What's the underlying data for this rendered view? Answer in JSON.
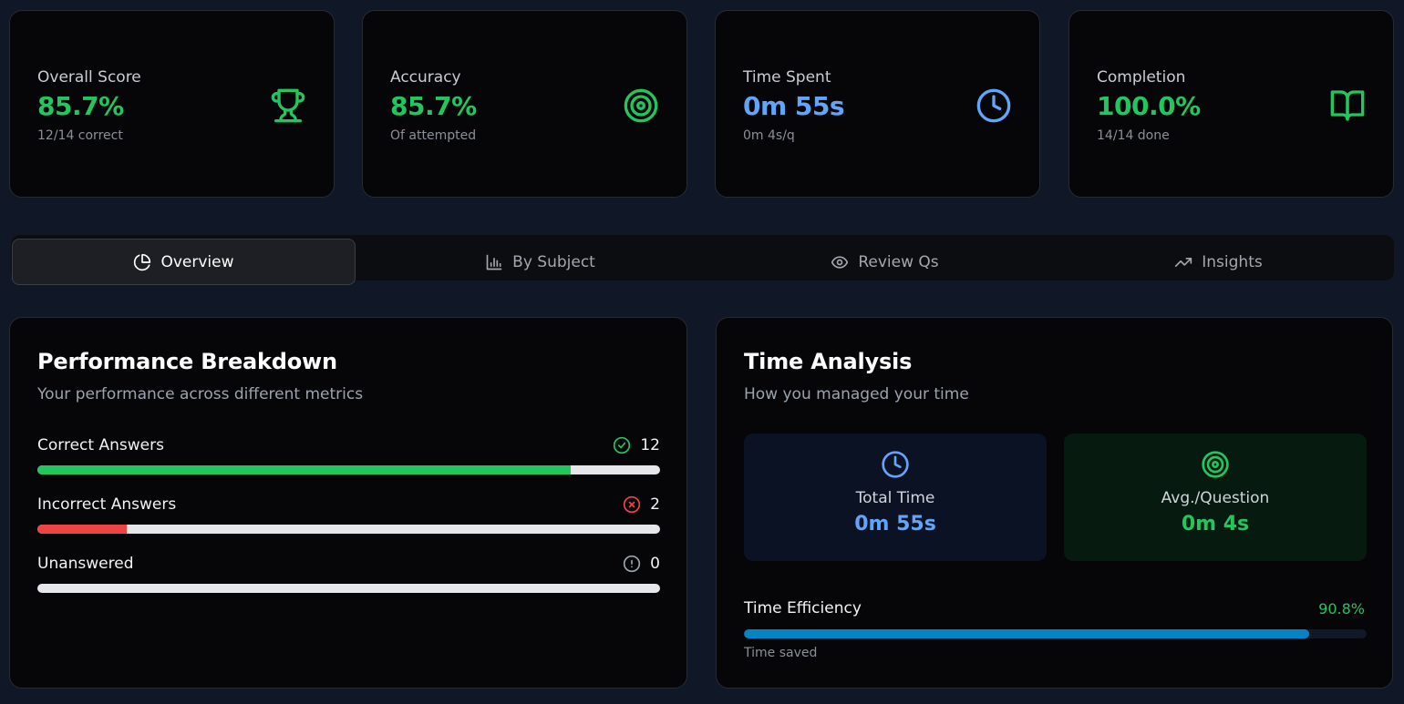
{
  "stats": [
    {
      "label": "Overall Score",
      "value": "85.7%",
      "sub": "12/14 correct",
      "icon": "trophy-icon",
      "color": "#22c55e"
    },
    {
      "label": "Accuracy",
      "value": "85.7%",
      "sub": "Of attempted",
      "icon": "target-icon",
      "color": "#22c55e"
    },
    {
      "label": "Time Spent",
      "value": "0m 55s",
      "sub": "0m 4s/q",
      "icon": "clock-icon",
      "color": "#60a5fa"
    },
    {
      "label": "Completion",
      "value": "100.0%",
      "sub": "14/14 done",
      "icon": "book-open-icon",
      "color": "#22c55e"
    }
  ],
  "tabs": [
    {
      "label": "Overview",
      "icon": "pie-chart-icon",
      "active": true
    },
    {
      "label": "By Subject",
      "icon": "bar-chart-icon",
      "active": false
    },
    {
      "label": "Review Qs",
      "icon": "eye-icon",
      "active": false
    },
    {
      "label": "Insights",
      "icon": "trending-up-icon",
      "active": false
    }
  ],
  "performance": {
    "title": "Performance Breakdown",
    "description": "Your performance across different metrics",
    "metrics": [
      {
        "label": "Correct Answers",
        "count": "12",
        "fraction": 0.857,
        "color": "#22c55e",
        "icon": "check-circle-icon"
      },
      {
        "label": "Incorrect Answers",
        "count": "2",
        "fraction": 0.143,
        "color": "#ef4444",
        "icon": "x-circle-icon"
      },
      {
        "label": "Unanswered",
        "count": "0",
        "fraction": 0,
        "color": "#9ca3af",
        "icon": "alert-circle-icon"
      }
    ]
  },
  "time_analysis": {
    "title": "Time Analysis",
    "description": "How you managed your time",
    "total_time": {
      "label": "Total Time",
      "value": "0m 55s",
      "icon": "clock-icon"
    },
    "avg_question": {
      "label": "Avg./Question",
      "value": "0m 4s",
      "icon": "target-icon"
    },
    "efficiency": {
      "label": "Time Efficiency",
      "percent": "90.8%",
      "fraction": 0.908,
      "sub": "Time saved"
    }
  }
}
